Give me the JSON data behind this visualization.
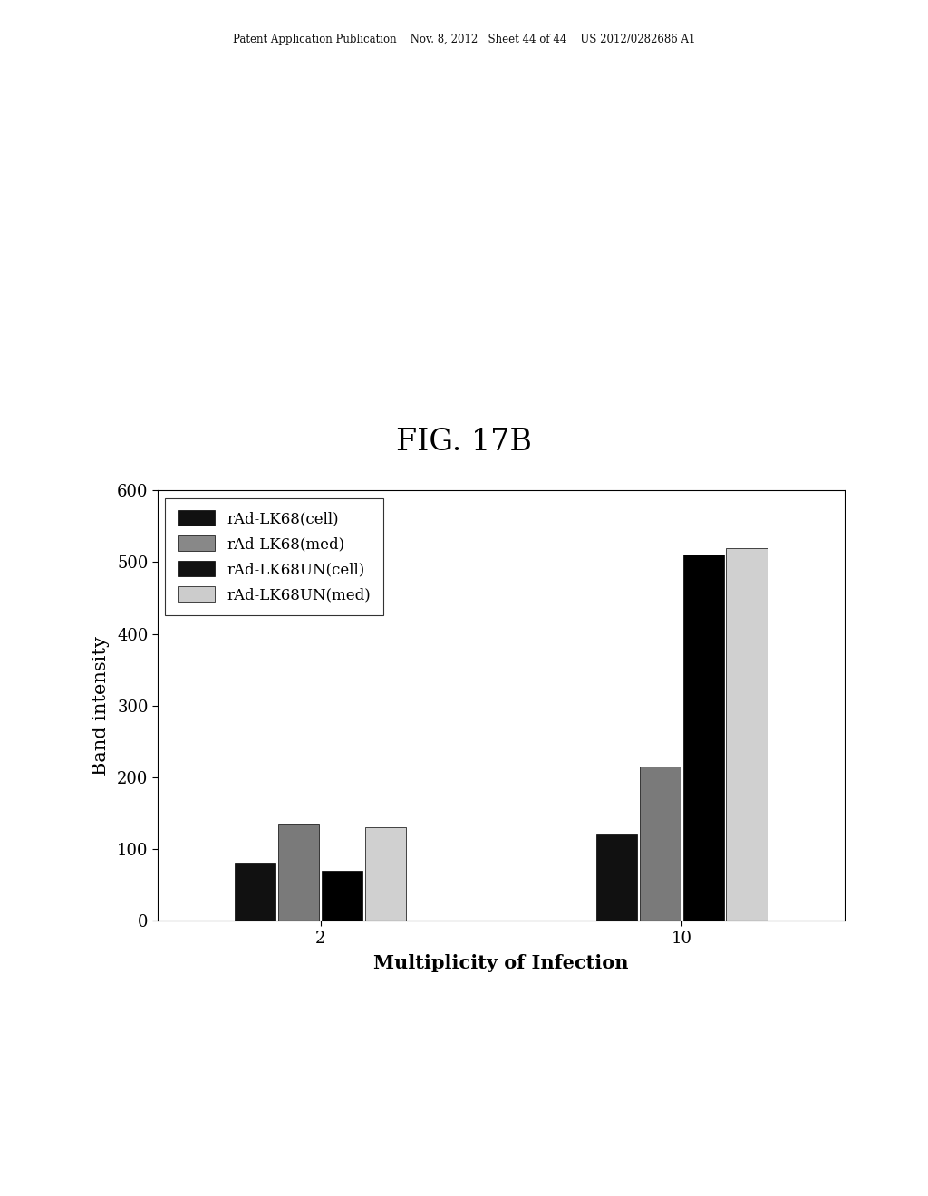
{
  "title": "FIG. 17B",
  "xlabel": "Multiplicity of Infection",
  "ylabel": "Band intensity",
  "categories": [
    "2",
    "10"
  ],
  "series": [
    {
      "label": "rAd-LK68(cell)",
      "values": [
        80,
        120
      ],
      "color": "#111111",
      "hatch": ""
    },
    {
      "label": "rAd-LK68(med)",
      "values": [
        135,
        215
      ],
      "color": "#888888",
      "hatch": ""
    },
    {
      "label": "rAd-LK68UN(cell)",
      "values": [
        70,
        510
      ],
      "color": "#111111",
      "hatch": ""
    },
    {
      "label": "rAd-LK68UN(med)",
      "values": [
        130,
        520
      ],
      "color": "#cccccc",
      "hatch": ""
    }
  ],
  "ylim": [
    0,
    600
  ],
  "yticks": [
    0,
    100,
    200,
    300,
    400,
    500,
    600
  ],
  "bar_width": 0.12,
  "header_text": "Patent Application Publication    Nov. 8, 2012   Sheet 44 of 44    US 2012/0282686 A1",
  "background_color": "#ffffff",
  "fig_title_fontsize": 24,
  "axis_label_fontsize": 15,
  "tick_fontsize": 13,
  "legend_fontsize": 12
}
